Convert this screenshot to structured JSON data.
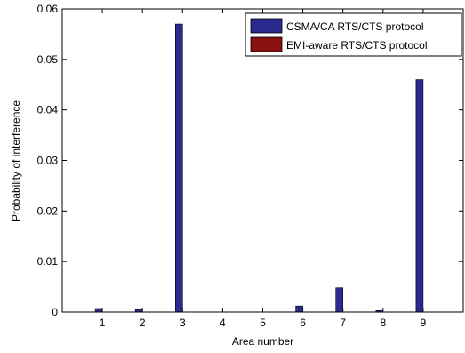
{
  "chart_data": {
    "type": "bar",
    "title": "",
    "xlabel": "Area number",
    "ylabel": "Probability of interference",
    "categories": [
      "1",
      "2",
      "3",
      "4",
      "5",
      "6",
      "7",
      "8",
      "9"
    ],
    "ylim": [
      0,
      0.06
    ],
    "yticks": [
      0,
      0.01,
      0.02,
      0.03,
      0.04,
      0.05,
      0.06
    ],
    "ytick_labels": [
      "0",
      "0.01",
      "0.02",
      "0.03",
      "0.04",
      "0.05",
      "0.06"
    ],
    "grid": false,
    "legend_position": "top-right",
    "series": [
      {
        "name": "CSMA/CA RTS/CTS protocol",
        "color": "#2b2b8f",
        "values": [
          0.0007,
          0.0005,
          0.057,
          0,
          0,
          0.0012,
          0.0048,
          0.0003,
          0.046
        ]
      },
      {
        "name": "EMI-aware RTS/CTS protocol",
        "color": "#8b1010",
        "values": [
          0,
          0,
          0,
          0,
          0,
          0,
          0,
          0,
          0
        ]
      }
    ]
  }
}
